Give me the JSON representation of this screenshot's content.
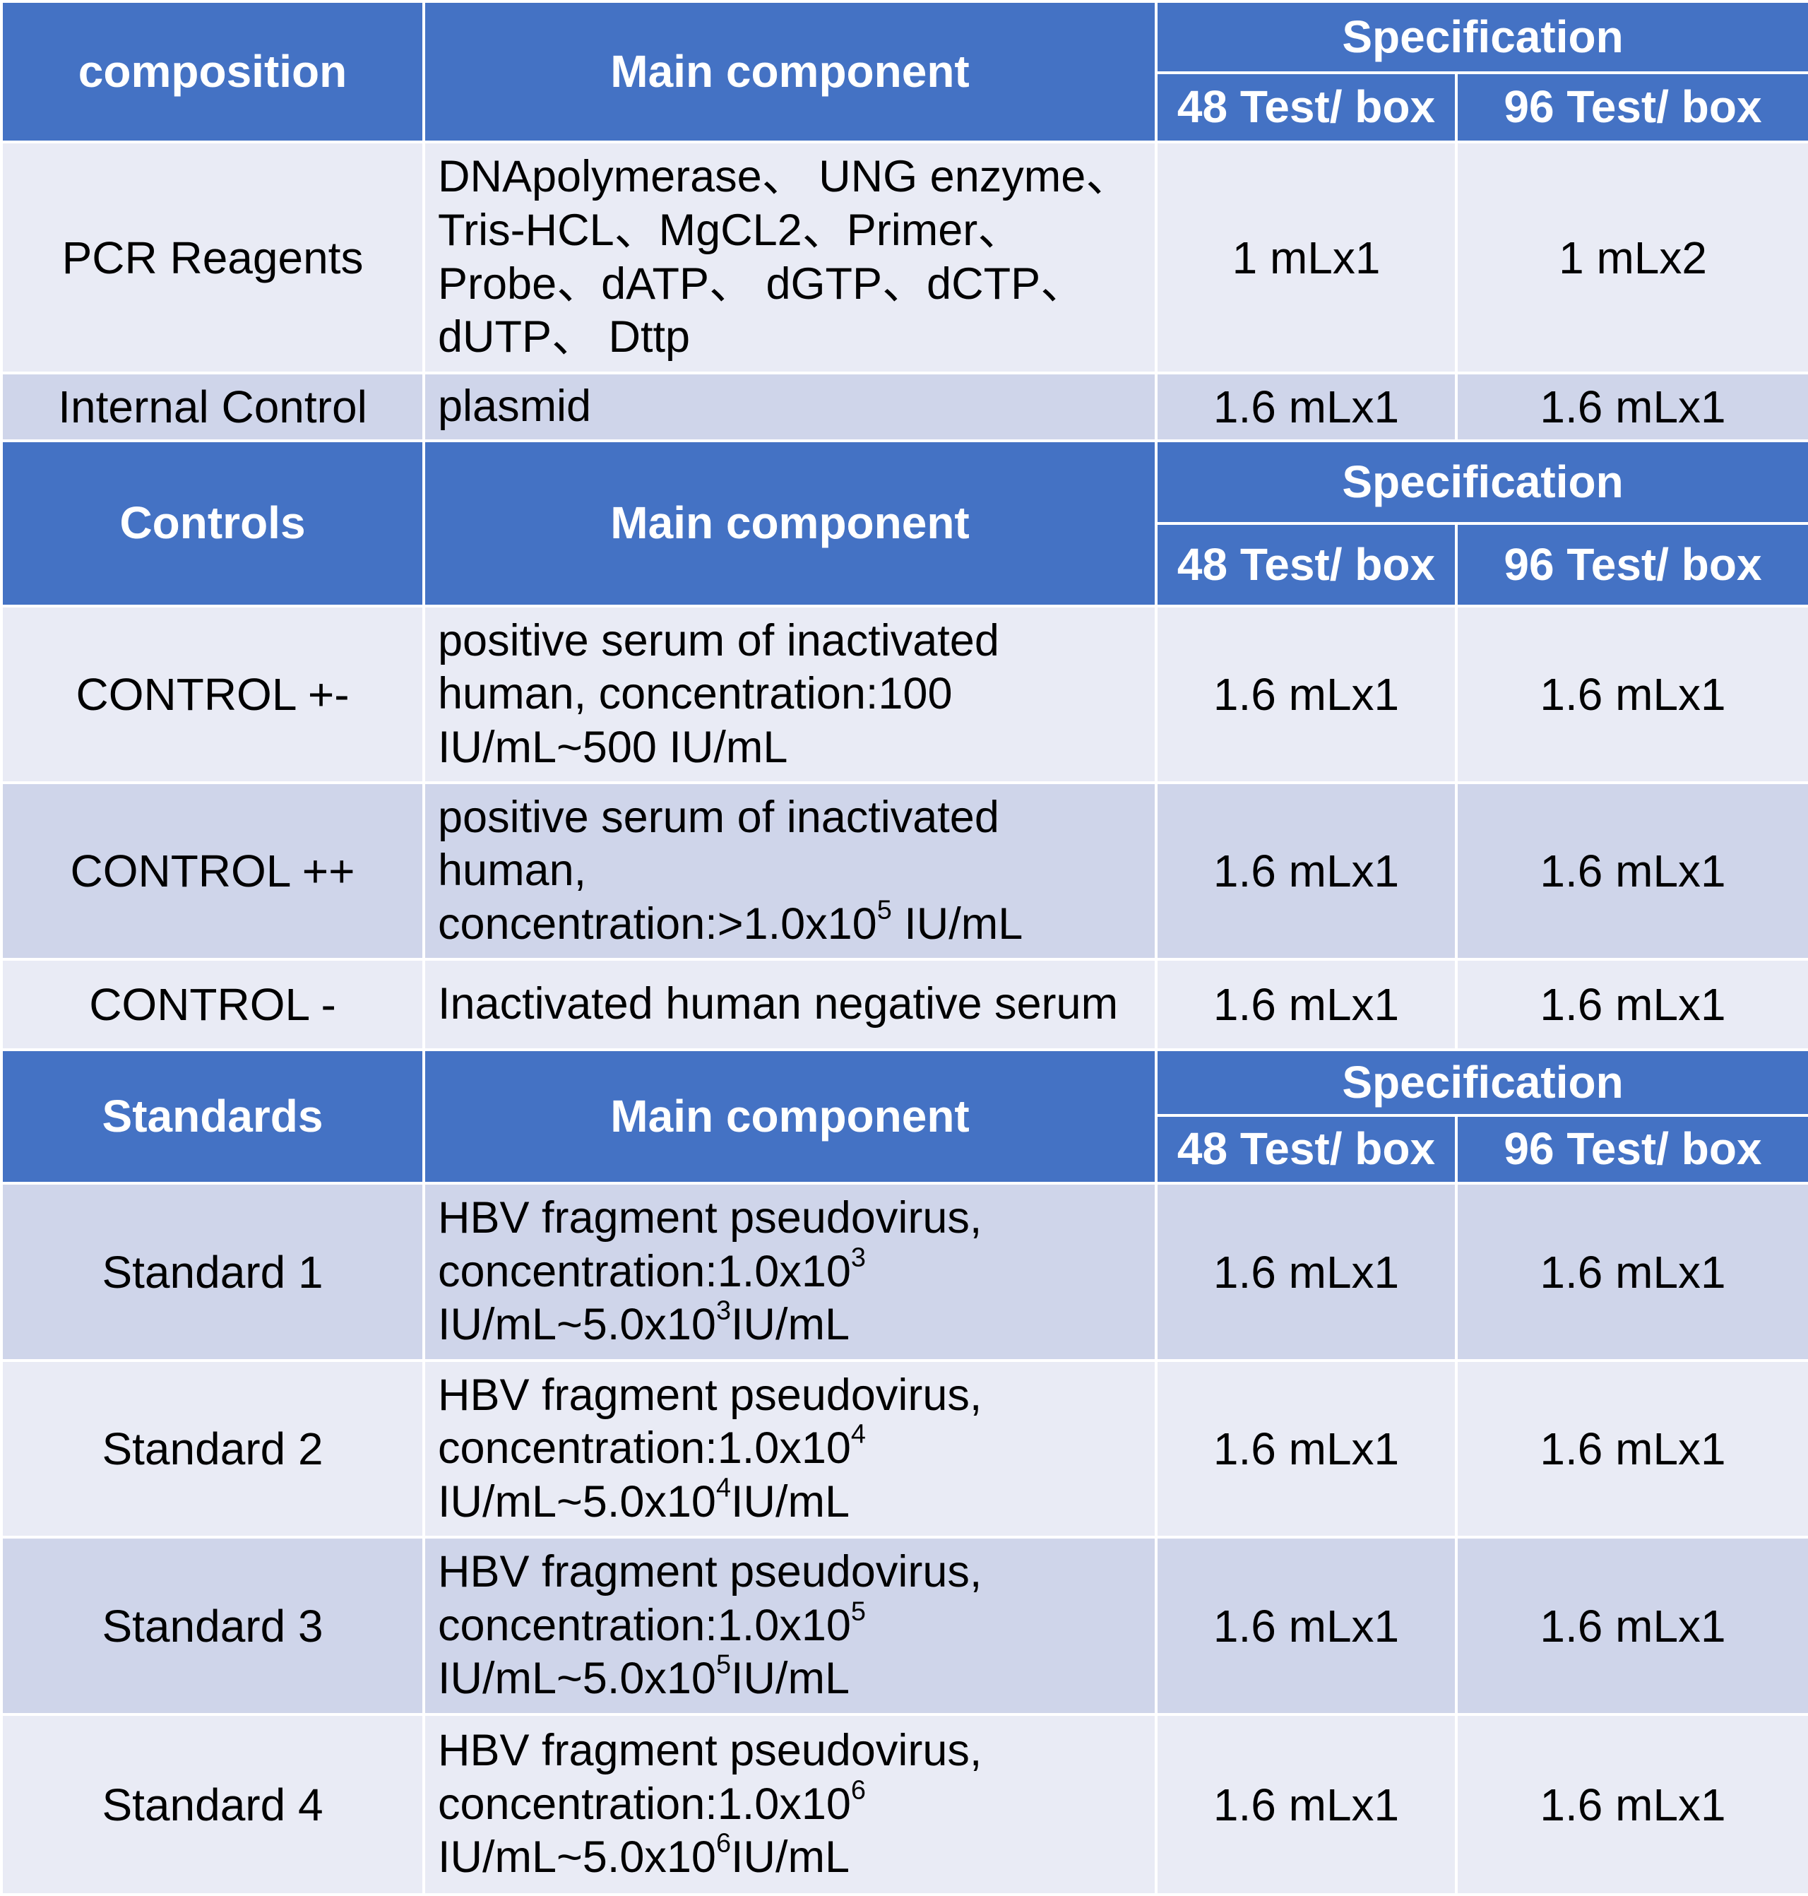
{
  "sections": [
    {
      "header": {
        "first": "composition",
        "main": "Main component",
        "spec": "Specification",
        "col48": "48 Test/ box",
        "col96": "96 Test/ box"
      },
      "rows": [
        {
          "name": "PCR Reagents",
          "desc_lines": [
            "DNApolymerase、 UNG enzyme、",
            "Tris-HCL、MgCL2、Primer、",
            "Probe、dATP、 dGTP、dCTP、",
            "dUTP、 Dttp"
          ],
          "v48": "1 mLx1",
          "v96": "1 mLx2"
        },
        {
          "name": "Internal Control",
          "desc_lines": [
            "plasmid"
          ],
          "v48": "1.6 mLx1",
          "v96": "1.6 mLx1"
        }
      ]
    },
    {
      "header": {
        "first": "Controls",
        "main": "Main component",
        "spec": "Specification",
        "col48": "48 Test/ box",
        "col96": "96 Test/ box"
      },
      "rows": [
        {
          "name": "CONTROL +-",
          "desc_lines": [
            "positive serum of inactivated",
            "human, concentration:100",
            "IU/mL~500 IU/mL"
          ],
          "v48": "1.6 mLx1",
          "v96": "1.6 mLx1"
        },
        {
          "name": "CONTROL ++",
          "desc_lines": [
            "positive serum of inactivated",
            "human,",
            "concentration:>1.0x10⁵ IU/mL"
          ],
          "v48": "1.6 mLx1",
          "v96": "1.6 mLx1"
        },
        {
          "name": "CONTROL -",
          "desc_lines": [
            "Inactivated human negative serum"
          ],
          "v48": "1.6 mLx1",
          "v96": "1.6 mLx1"
        }
      ]
    },
    {
      "header": {
        "first": "Standards",
        "main": "Main component",
        "spec": "Specification",
        "col48": "48 Test/ box",
        "col96": "96 Test/ box"
      },
      "rows": [
        {
          "name": "Standard 1",
          "desc_lines": [
            "HBV fragment pseudovirus,",
            "concentration:1.0x10³",
            "IU/mL~5.0x10³IU/mL"
          ],
          "v48": "1.6 mLx1",
          "v96": "1.6 mLx1"
        },
        {
          "name": "Standard 2",
          "desc_lines": [
            "HBV fragment pseudovirus,",
            "concentration:1.0x10⁴",
            "IU/mL~5.0x10⁴IU/mL"
          ],
          "v48": "1.6 mLx1",
          "v96": "1.6 mLx1"
        },
        {
          "name": "Standard 3",
          "desc_lines": [
            "HBV fragment pseudovirus,",
            "concentration:1.0x10⁵",
            "IU/mL~5.0x10⁵IU/mL"
          ],
          "v48": "1.6 mLx1",
          "v96": "1.6 mLx1"
        },
        {
          "name": "Standard 4",
          "desc_lines": [
            "HBV fragment pseudovirus,",
            "concentration:1.0x10⁶",
            "IU/mL~5.0x10⁶IU/mL"
          ],
          "v48": "1.6 mLx1",
          "v96": "1.6 mLx1"
        }
      ]
    }
  ],
  "colors": {
    "header_bg": "#4472c4",
    "header_text": "#ffffff",
    "row_light": "#e9ebf5",
    "row_dark": "#cfd5ea",
    "grid_lines": "#ffffff"
  }
}
